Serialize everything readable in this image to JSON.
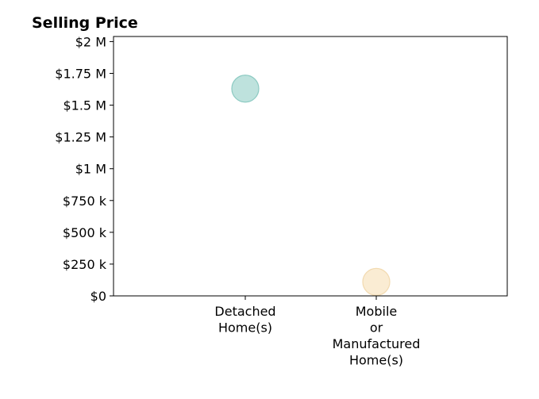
{
  "chart_data": {
    "type": "scatter",
    "title": "Selling Price",
    "xlabel": "",
    "ylabel": "",
    "categories": [
      "Detached Home(s)",
      "Mobile or Manufactured Home(s)"
    ],
    "category_label_lines": [
      [
        "Detached",
        "Home(s)"
      ],
      [
        "Mobile",
        "or",
        "Manufactured",
        "Home(s)"
      ]
    ],
    "values": [
      1630000,
      110000
    ],
    "point_colors": [
      "#a8d8d2",
      "#f8e6c4"
    ],
    "point_stroke_colors": [
      "#8ccac2",
      "#f2dab0"
    ],
    "ylim": [
      0,
      2040000
    ],
    "yticks": [
      0,
      250000,
      500000,
      750000,
      1000000,
      1250000,
      1500000,
      1750000,
      2000000
    ],
    "ytick_labels": [
      "$0",
      "$250 k",
      "$500 k",
      "$750 k",
      "$1 M",
      "$1.25 M",
      "$1.5 M",
      "$1.75 M",
      "$2 M"
    ],
    "grid": false,
    "legend": "none"
  }
}
